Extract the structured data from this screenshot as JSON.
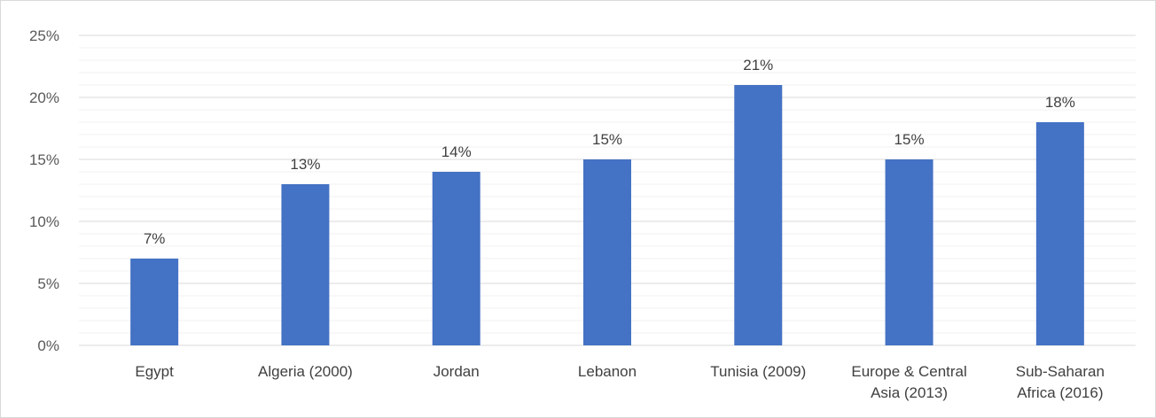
{
  "chart_data": {
    "type": "bar",
    "title": "",
    "xlabel": "",
    "ylabel": "",
    "categories": [
      "Egypt",
      "Algeria (2000)",
      "Jordan",
      "Lebanon",
      "Tunisia (2009)",
      "Europe & Central Asia (2013)",
      "Sub-Saharan Africa (2016)"
    ],
    "category_lines": [
      [
        "Egypt"
      ],
      [
        "Algeria (2000)"
      ],
      [
        "Jordan"
      ],
      [
        "Lebanon"
      ],
      [
        "Tunisia (2009)"
      ],
      [
        "Europe & Central",
        "Asia (2013)"
      ],
      [
        "Sub-Saharan",
        "Africa (2016)"
      ]
    ],
    "values": [
      7,
      13,
      14,
      15,
      21,
      15,
      18
    ],
    "data_labels": [
      "7%",
      "13%",
      "14%",
      "15%",
      "21%",
      "15%",
      "18%"
    ],
    "ylim": [
      0,
      25
    ],
    "y_ticks": [
      0,
      5,
      10,
      15,
      20,
      25
    ],
    "y_tick_labels": [
      "0%",
      "5%",
      "10%",
      "15%",
      "20%",
      "25%"
    ],
    "grid": true,
    "legend": "none",
    "bar_color": "#4472c4",
    "gridline_color": "#d9d9d9",
    "minor_gridline_color": "#f0f0f0"
  }
}
